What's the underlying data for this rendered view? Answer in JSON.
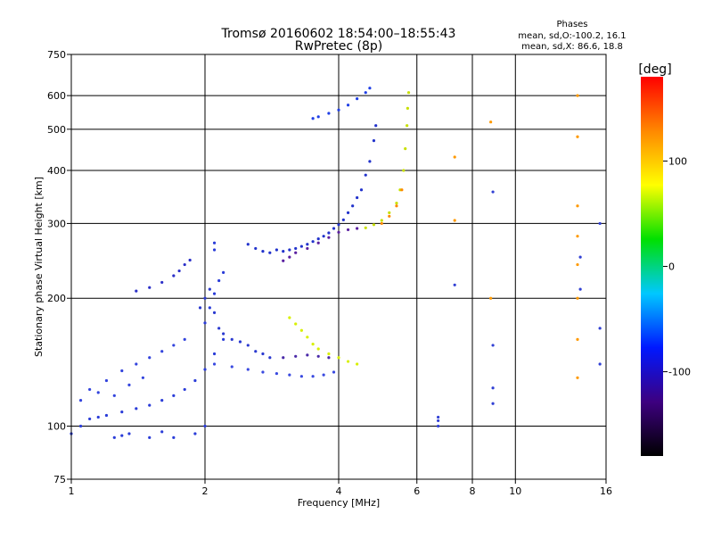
{
  "chart_data": {
    "type": "scatter",
    "title": "Tromsø 20160602 18:54:00–18:55:43",
    "subtitle": "RwPretec (8p)",
    "xlabel": "Frequency [MHz]",
    "ylabel": "Stationary phase Virtual Height [km]",
    "x_scale": "log",
    "y_scale": "log",
    "xlim": [
      1,
      16
    ],
    "ylim": [
      75,
      750
    ],
    "xticks": [
      1,
      2,
      4,
      6,
      8,
      10,
      16
    ],
    "xgrid": [
      2,
      4,
      6,
      8,
      10
    ],
    "yticks": [
      75,
      100,
      200,
      300,
      400,
      500,
      600,
      750
    ],
    "ygrid": [
      100,
      200,
      300,
      400,
      500,
      600
    ],
    "grid": true,
    "phases_block": {
      "heading": "Phases",
      "line1": "mean, sd,O:-100.2, 16.1",
      "line2": "mean, sd,X:  86.6, 18.8"
    },
    "colorbar": {
      "label": "[deg]",
      "min": -180,
      "max": 180,
      "ticks": [
        100,
        0,
        -100
      ],
      "colors": [
        "#000000",
        "#3d0080",
        "#0018ff",
        "#00c8ff",
        "#00e000",
        "#ffff00",
        "#ff8800",
        "#ff0000"
      ]
    },
    "series": [
      {
        "description_hidden": true,
        "color": "#2a3cd8",
        "points": [
          [
            1.0,
            96
          ],
          [
            1.05,
            100
          ],
          [
            1.1,
            104
          ],
          [
            1.15,
            105
          ],
          [
            1.2,
            106
          ],
          [
            1.3,
            108
          ],
          [
            1.4,
            110
          ],
          [
            1.5,
            112
          ],
          [
            1.6,
            115
          ],
          [
            1.7,
            118
          ],
          [
            1.8,
            122
          ],
          [
            1.9,
            128
          ],
          [
            2.0,
            136
          ],
          [
            2.1,
            148
          ],
          [
            2.2,
            160
          ],
          [
            2.0,
            175
          ],
          [
            2.05,
            190
          ],
          [
            2.1,
            205
          ],
          [
            2.15,
            220
          ],
          [
            2.2,
            230
          ],
          [
            2.1,
            260
          ],
          [
            2.1,
            270
          ]
        ]
      },
      {
        "color": "#3344dd",
        "points": [
          [
            1.05,
            115
          ],
          [
            1.15,
            120
          ],
          [
            1.25,
            118
          ],
          [
            1.35,
            125
          ],
          [
            1.45,
            130
          ],
          [
            1.1,
            122
          ],
          [
            1.2,
            128
          ],
          [
            1.3,
            135
          ],
          [
            1.4,
            140
          ],
          [
            1.5,
            145
          ],
          [
            1.6,
            150
          ],
          [
            1.7,
            155
          ],
          [
            1.8,
            160
          ]
        ]
      },
      {
        "color": "#2b2fc8",
        "points": [
          [
            1.4,
            208
          ],
          [
            1.5,
            212
          ],
          [
            1.6,
            218
          ],
          [
            1.7,
            226
          ],
          [
            1.75,
            232
          ],
          [
            1.8,
            240
          ],
          [
            1.85,
            246
          ]
        ]
      },
      {
        "color": "#2233cc",
        "points": [
          [
            2.5,
            268
          ],
          [
            2.6,
            262
          ],
          [
            2.7,
            258
          ],
          [
            2.8,
            256
          ],
          [
            2.9,
            260
          ],
          [
            3.0,
            258
          ],
          [
            3.1,
            260
          ],
          [
            3.2,
            262
          ],
          [
            3.3,
            265
          ],
          [
            3.4,
            268
          ],
          [
            3.5,
            272
          ],
          [
            3.6,
            276
          ],
          [
            3.7,
            280
          ],
          [
            3.8,
            285
          ],
          [
            3.9,
            292
          ],
          [
            4.0,
            298
          ],
          [
            4.1,
            306
          ],
          [
            4.2,
            318
          ],
          [
            4.3,
            330
          ],
          [
            4.4,
            345
          ],
          [
            4.5,
            360
          ],
          [
            4.6,
            390
          ],
          [
            4.7,
            420
          ],
          [
            4.8,
            470
          ],
          [
            4.85,
            510
          ]
        ]
      },
      {
        "color": "#5a1fa0",
        "points": [
          [
            3.0,
            245
          ],
          [
            3.1,
            250
          ],
          [
            3.2,
            256
          ],
          [
            3.4,
            262
          ],
          [
            3.6,
            270
          ],
          [
            3.8,
            278
          ],
          [
            4.0,
            286
          ],
          [
            4.2,
            290
          ],
          [
            4.4,
            292
          ]
        ]
      },
      {
        "color": "#1f3fe6",
        "points": [
          [
            3.5,
            530
          ],
          [
            3.6,
            535
          ],
          [
            3.8,
            545
          ],
          [
            4.0,
            555
          ],
          [
            4.2,
            570
          ],
          [
            4.4,
            590
          ],
          [
            4.6,
            610
          ],
          [
            4.7,
            625
          ]
        ]
      },
      {
        "color": "#c8e000",
        "points": [
          [
            4.6,
            293
          ],
          [
            4.8,
            298
          ],
          [
            5.0,
            305
          ],
          [
            5.2,
            318
          ],
          [
            5.4,
            335
          ],
          [
            5.5,
            360
          ],
          [
            5.6,
            400
          ],
          [
            5.65,
            450
          ],
          [
            5.7,
            510
          ],
          [
            5.72,
            560
          ],
          [
            5.75,
            610
          ]
        ]
      },
      {
        "color": "#ff8800",
        "points": [
          [
            5.0,
            300
          ],
          [
            5.2,
            312
          ],
          [
            5.4,
            330
          ],
          [
            5.55,
            360
          ]
        ]
      },
      {
        "color": "#3a4ae0",
        "points": [
          [
            2.1,
            140
          ],
          [
            2.3,
            138
          ],
          [
            2.5,
            136
          ],
          [
            2.7,
            134
          ],
          [
            2.9,
            133
          ],
          [
            3.1,
            132
          ],
          [
            3.3,
            131
          ],
          [
            3.5,
            131
          ],
          [
            3.7,
            132
          ],
          [
            3.9,
            134
          ]
        ]
      },
      {
        "color": "#4a2aa8",
        "points": [
          [
            3.0,
            145
          ],
          [
            3.2,
            146
          ],
          [
            3.4,
            147
          ],
          [
            3.6,
            146
          ],
          [
            3.8,
            145
          ]
        ]
      },
      {
        "color": "#d8f000",
        "points": [
          [
            3.1,
            180
          ],
          [
            3.2,
            174
          ],
          [
            3.3,
            168
          ],
          [
            3.4,
            162
          ],
          [
            3.5,
            156
          ],
          [
            3.6,
            152
          ],
          [
            3.8,
            148
          ],
          [
            4.0,
            145
          ],
          [
            4.2,
            142
          ],
          [
            4.4,
            140
          ]
        ]
      },
      {
        "color": "#2b3ad0",
        "points": [
          [
            1.95,
            190
          ],
          [
            2.0,
            200
          ],
          [
            2.05,
            210
          ],
          [
            2.1,
            185
          ],
          [
            2.15,
            170
          ],
          [
            2.2,
            165
          ],
          [
            2.3,
            160
          ],
          [
            2.4,
            158
          ],
          [
            2.5,
            155
          ],
          [
            2.6,
            150
          ],
          [
            2.7,
            148
          ],
          [
            2.8,
            145
          ]
        ]
      },
      {
        "color": "#3140d4",
        "points": [
          [
            6.7,
            100
          ],
          [
            6.7,
            103
          ],
          [
            6.7,
            105
          ],
          [
            7.3,
            215
          ],
          [
            8.9,
            123
          ],
          [
            8.9,
            113
          ],
          [
            8.9,
            155
          ],
          [
            8.9,
            356
          ],
          [
            14.0,
            210
          ],
          [
            14.0,
            250
          ],
          [
            15.5,
            300
          ],
          [
            15.5,
            170
          ],
          [
            15.5,
            140
          ]
        ]
      },
      {
        "color": "#ff9900",
        "points": [
          [
            13.8,
            600
          ],
          [
            13.8,
            480
          ],
          [
            13.8,
            330
          ],
          [
            13.8,
            280
          ],
          [
            13.8,
            240
          ],
          [
            13.8,
            200
          ],
          [
            13.8,
            160
          ],
          [
            13.8,
            130
          ],
          [
            7.3,
            430
          ],
          [
            7.3,
            305
          ],
          [
            8.8,
            520
          ],
          [
            8.8,
            200
          ]
        ]
      },
      {
        "color": "#2a3cd8",
        "points": [
          [
            1.25,
            94
          ],
          [
            1.3,
            95
          ],
          [
            1.35,
            96
          ],
          [
            1.5,
            94
          ],
          [
            1.6,
            97
          ],
          [
            1.7,
            94
          ],
          [
            1.9,
            96
          ],
          [
            2.0,
            100
          ]
        ]
      }
    ]
  }
}
